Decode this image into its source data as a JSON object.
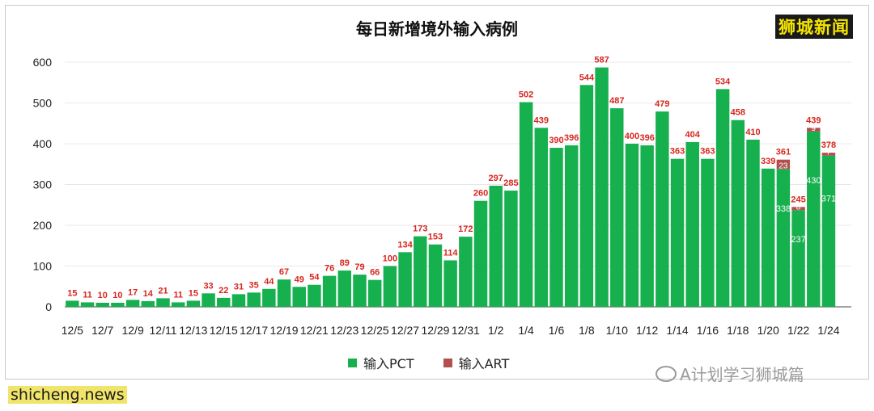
{
  "title": "每日新增境外输入病例",
  "brand": "狮城新闻",
  "legend": {
    "pct_label": "输入PCT",
    "art_label": "输入ART"
  },
  "watermark": "A计划学习狮城篇",
  "footer": "shicheng.news",
  "colors": {
    "pct": "#16b04f",
    "art": "#b2504e",
    "label": "#d7261e",
    "grid": "#e8e8e8",
    "axis": "#444444"
  },
  "chart_data": {
    "type": "bar",
    "stacked": true,
    "title": "每日新增境外输入病例",
    "ylim": [
      0,
      600
    ],
    "yticks": [
      0,
      100,
      200,
      300,
      400,
      500,
      600
    ],
    "grid": true,
    "legend_position": "bottom",
    "categories": [
      "12/5",
      "12/6",
      "12/7",
      "12/8",
      "12/9",
      "12/10",
      "12/11",
      "12/12",
      "12/13",
      "12/14",
      "12/15",
      "12/16",
      "12/17",
      "12/18",
      "12/19",
      "12/20",
      "12/21",
      "12/22",
      "12/23",
      "12/24",
      "12/25",
      "12/26",
      "12/27",
      "12/28",
      "12/29",
      "12/30",
      "12/31",
      "1/1",
      "1/2",
      "1/3",
      "1/4",
      "1/5",
      "1/6",
      "1/7",
      "1/8",
      "1/9",
      "1/10",
      "1/11",
      "1/12",
      "1/13",
      "1/14",
      "1/15",
      "1/16",
      "1/17",
      "1/18",
      "1/19",
      "1/20",
      "1/21",
      "1/22",
      "1/23",
      "1/24",
      "1/25"
    ],
    "x_tick_labels": [
      "12/5",
      "12/7",
      "12/9",
      "12/11",
      "12/13",
      "12/15",
      "12/17",
      "12/19",
      "12/21",
      "12/23",
      "12/25",
      "12/27",
      "12/29",
      "12/31",
      "1/2",
      "1/4",
      "1/6",
      "1/8",
      "1/10",
      "1/12",
      "1/14",
      "1/16",
      "1/18",
      "1/20",
      "1/22",
      "1/24"
    ],
    "series": [
      {
        "name": "输入PCT",
        "values": [
          15,
          11,
          10,
          10,
          17,
          14,
          21,
          11,
          15,
          33,
          22,
          31,
          35,
          44,
          67,
          49,
          54,
          76,
          89,
          79,
          66,
          100,
          134,
          173,
          153,
          114,
          172,
          260,
          297,
          285,
          502,
          439,
          390,
          396,
          544,
          587,
          487,
          400,
          396,
          479,
          363,
          404,
          363,
          534,
          458,
          410,
          339,
          338,
          237,
          430,
          371,
          null
        ]
      },
      {
        "name": "输入ART",
        "values": [
          0,
          0,
          0,
          0,
          0,
          0,
          0,
          0,
          0,
          0,
          0,
          0,
          0,
          0,
          0,
          0,
          0,
          0,
          0,
          0,
          0,
          0,
          0,
          0,
          0,
          0,
          0,
          0,
          0,
          0,
          0,
          0,
          0,
          0,
          0,
          0,
          0,
          0,
          0,
          0,
          0,
          0,
          0,
          0,
          0,
          0,
          0,
          23,
          8,
          9,
          7,
          null
        ]
      }
    ],
    "totals": [
      15,
      11,
      10,
      10,
      17,
      14,
      21,
      11,
      15,
      33,
      22,
      31,
      35,
      44,
      67,
      49,
      54,
      76,
      89,
      79,
      66,
      100,
      134,
      173,
      153,
      114,
      172,
      260,
      297,
      285,
      502,
      439,
      390,
      396,
      544,
      587,
      487,
      400,
      396,
      479,
      363,
      404,
      363,
      534,
      458,
      410,
      339,
      361,
      245,
      439,
      378,
      null
    ]
  }
}
